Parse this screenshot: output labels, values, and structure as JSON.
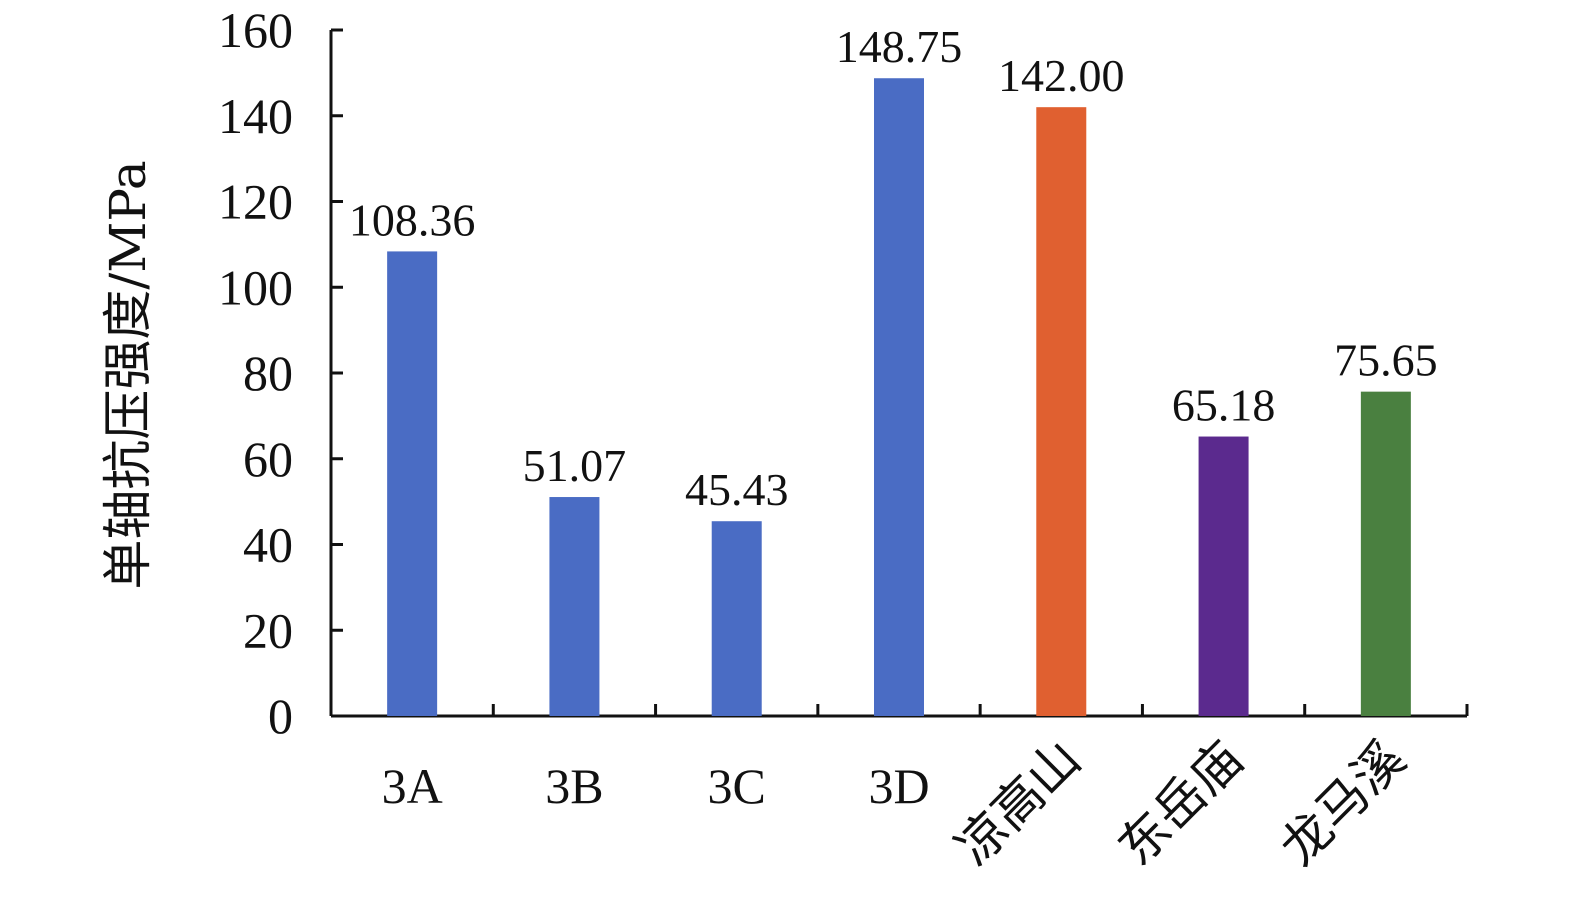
{
  "chart_data": {
    "type": "bar",
    "title": "",
    "xlabel": "",
    "ylabel": "单轴抗压强度/MPa",
    "ylim": [
      0,
      160
    ],
    "yticks": [
      0,
      20,
      40,
      60,
      80,
      100,
      120,
      140,
      160
    ],
    "grid": false,
    "categories": [
      "3A",
      "3B",
      "3C",
      "3D",
      "凉高山",
      "东岳庙",
      "龙马溪"
    ],
    "values": [
      108.36,
      51.07,
      45.43,
      148.75,
      142.0,
      65.18,
      75.65
    ],
    "value_labels": [
      "108.36",
      "51.07",
      "45.43",
      "148.75",
      "142.00",
      "65.18",
      "75.65"
    ],
    "rotated_categories": [
      false,
      false,
      false,
      false,
      true,
      true,
      true
    ],
    "colors": [
      "#4a6cc4",
      "#4a6cc4",
      "#4a6cc4",
      "#4a6cc4",
      "#e06030",
      "#5b2a8e",
      "#4a8040"
    ]
  }
}
